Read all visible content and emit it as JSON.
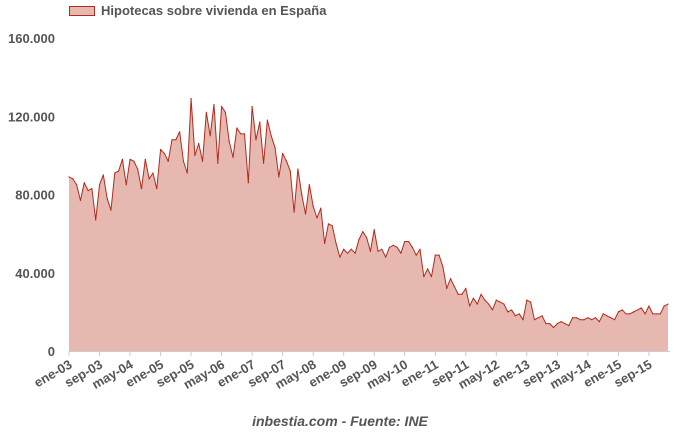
{
  "chart_data": {
    "type": "area",
    "title": "",
    "xlabel": "",
    "ylabel": "",
    "series_name": "Hipotecas sobre vivienda en España",
    "source": "inbestia.com - Fuente: INE",
    "ylim": [
      0,
      160000
    ],
    "y_ticks": [
      0,
      40000,
      80000,
      120000,
      160000
    ],
    "y_tick_labels": [
      "0",
      "40.000",
      "80.000",
      "120.000",
      "160.000"
    ],
    "x_tick_labels": [
      "ene-03",
      "sep-03",
      "may-04",
      "ene-05",
      "sep-05",
      "may-06",
      "ene-07",
      "sep-07",
      "may-08",
      "ene-09",
      "sep-09",
      "may-10",
      "ene-11",
      "sep-11",
      "may-12",
      "ene-13",
      "sep-13",
      "may-14",
      "ene-15",
      "sep-15"
    ],
    "x_tick_month_index": [
      0,
      8,
      16,
      24,
      32,
      40,
      48,
      56,
      64,
      72,
      80,
      88,
      96,
      104,
      112,
      120,
      128,
      136,
      144,
      152
    ],
    "start": "ene-03",
    "frequency": "monthly",
    "colors": {
      "fill": "#e7b8b0",
      "line": "#b22a1c",
      "axis": "#cccccc",
      "text": "#555555"
    },
    "grid": false,
    "legend_position": "top-left",
    "values": [
      89000,
      88000,
      85000,
      77000,
      86000,
      82000,
      83000,
      67000,
      85000,
      90000,
      78000,
      72000,
      91000,
      92000,
      98000,
      85000,
      98000,
      97000,
      93000,
      83000,
      98000,
      88000,
      91000,
      83000,
      103000,
      101000,
      97000,
      108000,
      108000,
      112000,
      97000,
      91000,
      129000,
      100000,
      106000,
      97000,
      122000,
      110000,
      126000,
      96000,
      125000,
      122000,
      107000,
      99000,
      114000,
      111000,
      111000,
      86000,
      125000,
      108000,
      117000,
      96000,
      118000,
      110000,
      104000,
      89000,
      101000,
      97000,
      92000,
      71000,
      93000,
      80000,
      70000,
      85000,
      74000,
      68000,
      73000,
      55000,
      65000,
      64000,
      55000,
      48000,
      52000,
      50000,
      52000,
      50000,
      57000,
      61000,
      58000,
      51000,
      62000,
      51000,
      52000,
      48000,
      53000,
      54000,
      53000,
      50000,
      56000,
      56000,
      53000,
      49000,
      52000,
      38000,
      42000,
      38000,
      49000,
      49000,
      43000,
      32000,
      37000,
      33000,
      29000,
      29000,
      32000,
      23000,
      27000,
      24000,
      29000,
      26000,
      24000,
      21000,
      26000,
      25000,
      24000,
      20000,
      21000,
      18000,
      19000,
      16000,
      26000,
      25000,
      16000,
      17000,
      18000,
      14000,
      14000,
      12000,
      14000,
      15000,
      14000,
      13000,
      17000,
      17000,
      16000,
      16000,
      17000,
      16000,
      17000,
      15000,
      19000,
      18000,
      17000,
      16000,
      20000,
      21000,
      19000,
      19000,
      20000,
      21000,
      22000,
      19000,
      23000,
      19000,
      19000,
      19000,
      23000,
      24000
    ]
  }
}
